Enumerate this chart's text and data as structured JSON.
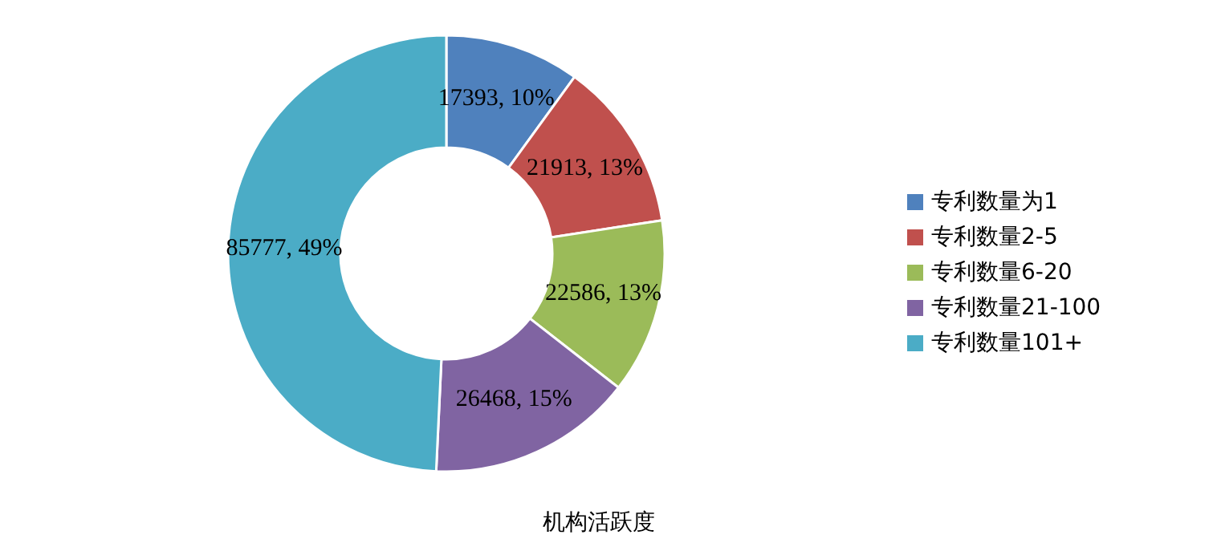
{
  "chart_data": {
    "type": "donut",
    "title": "机构活跃度",
    "categories": [
      "专利数量为1",
      "专利数量2-5",
      "专利数量6-20",
      "专利数量21-100",
      "专利数量101+"
    ],
    "values": [
      17393,
      21913,
      22586,
      26468,
      85777
    ],
    "value_labels": [
      "17393, 10%",
      "21913, 13%",
      "22586, 13%",
      "26468, 15%",
      "85777, 49%"
    ],
    "colors": [
      "#4f81bd",
      "#c0504d",
      "#9bbb59",
      "#8064a2",
      "#4bacc6"
    ],
    "legend": "right"
  }
}
